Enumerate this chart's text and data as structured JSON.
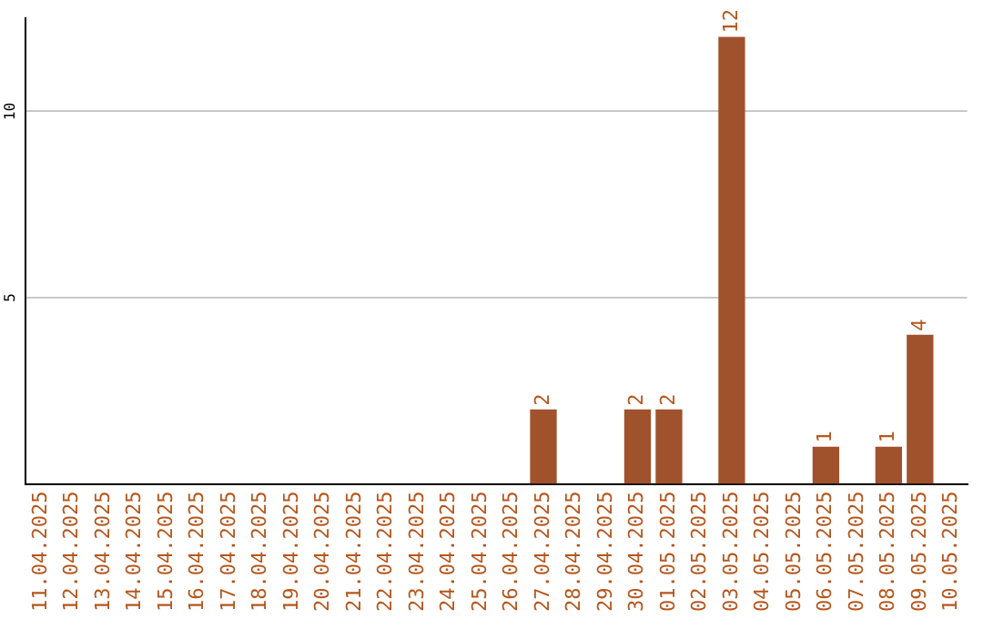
{
  "chart_data": {
    "type": "bar",
    "categories": [
      "11.04.2025",
      "12.04.2025",
      "13.04.2025",
      "14.04.2025",
      "15.04.2025",
      "16.04.2025",
      "17.04.2025",
      "18.04.2025",
      "19.04.2025",
      "20.04.2025",
      "21.04.2025",
      "22.04.2025",
      "23.04.2025",
      "24.04.2025",
      "25.04.2025",
      "26.04.2025",
      "27.04.2025",
      "28.04.2025",
      "29.04.2025",
      "30.04.2025",
      "01.05.2025",
      "02.05.2025",
      "03.05.2025",
      "04.05.2025",
      "05.05.2025",
      "06.05.2025",
      "07.05.2025",
      "08.05.2025",
      "09.05.2025",
      "10.05.2025"
    ],
    "values": [
      0,
      0,
      0,
      0,
      0,
      0,
      0,
      0,
      0,
      0,
      0,
      0,
      0,
      0,
      0,
      0,
      2,
      0,
      0,
      2,
      2,
      0,
      12,
      0,
      0,
      1,
      0,
      1,
      4,
      0
    ],
    "value_labels": [
      null,
      null,
      null,
      null,
      null,
      null,
      null,
      null,
      null,
      null,
      null,
      null,
      null,
      null,
      null,
      null,
      "2",
      null,
      null,
      "2",
      "2",
      null,
      "12",
      null,
      null,
      "1",
      null,
      "1",
      "4",
      null
    ],
    "color": "#a0522d",
    "ylim": [
      0,
      12.5
    ],
    "yticks": [
      5,
      10
    ],
    "grid": "y",
    "legend": false
  }
}
